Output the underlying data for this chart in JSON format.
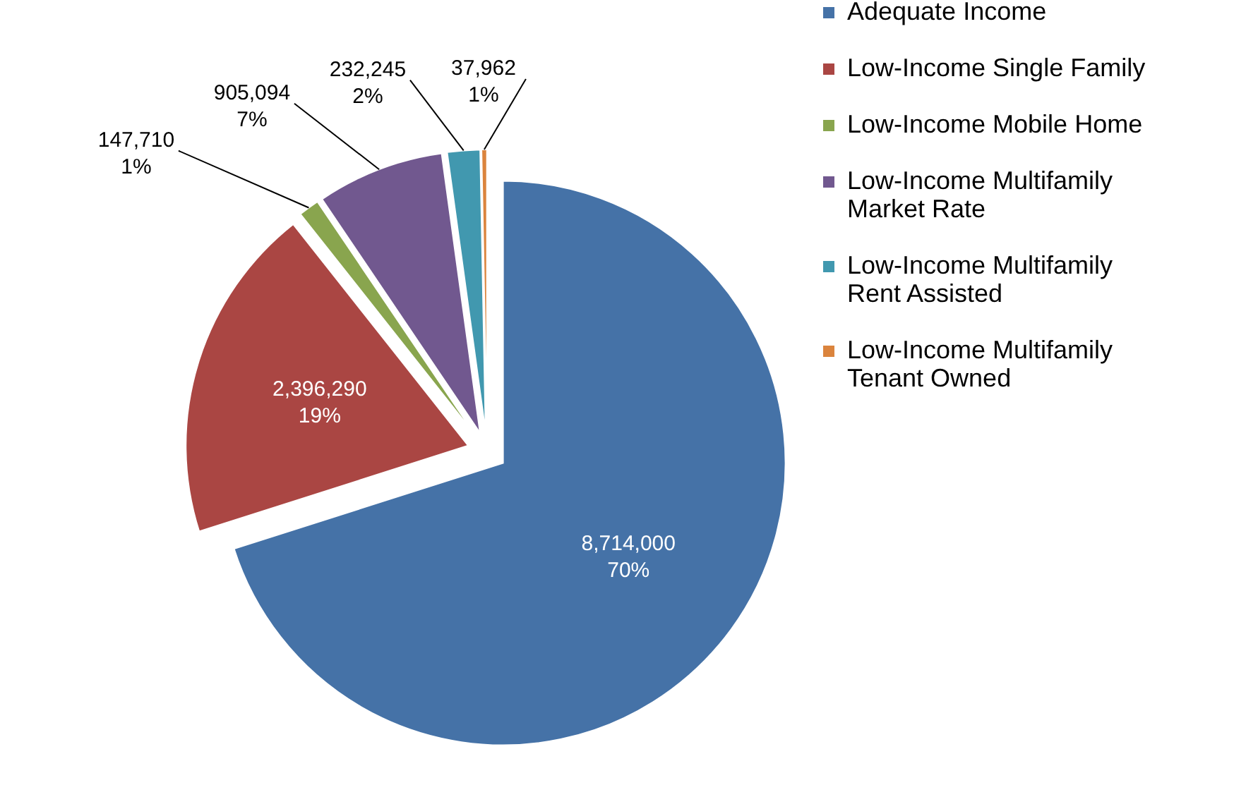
{
  "chart_data": {
    "type": "pie",
    "categories": [
      "Adequate Income",
      "Low-Income Single Family",
      "Low-Income Mobile Home",
      "Low-Income Multifamily Market Rate",
      "Low-Income Multifamily Rent Assisted",
      "Low-Income Multifamily Tenant Owned"
    ],
    "values": [
      8714000,
      2396290,
      147710,
      905094,
      232245,
      37962
    ],
    "colors": [
      "#4572a7",
      "#aa4643",
      "#89a54e",
      "#71588f",
      "#4198af",
      "#db843d"
    ],
    "value_labels": [
      "8,714,000\n70%",
      "2,396,290\n19%",
      "147,710\n1%",
      "905,094\n7%",
      "232,245\n2%",
      "37,962\n1%"
    ],
    "legend": "right"
  }
}
